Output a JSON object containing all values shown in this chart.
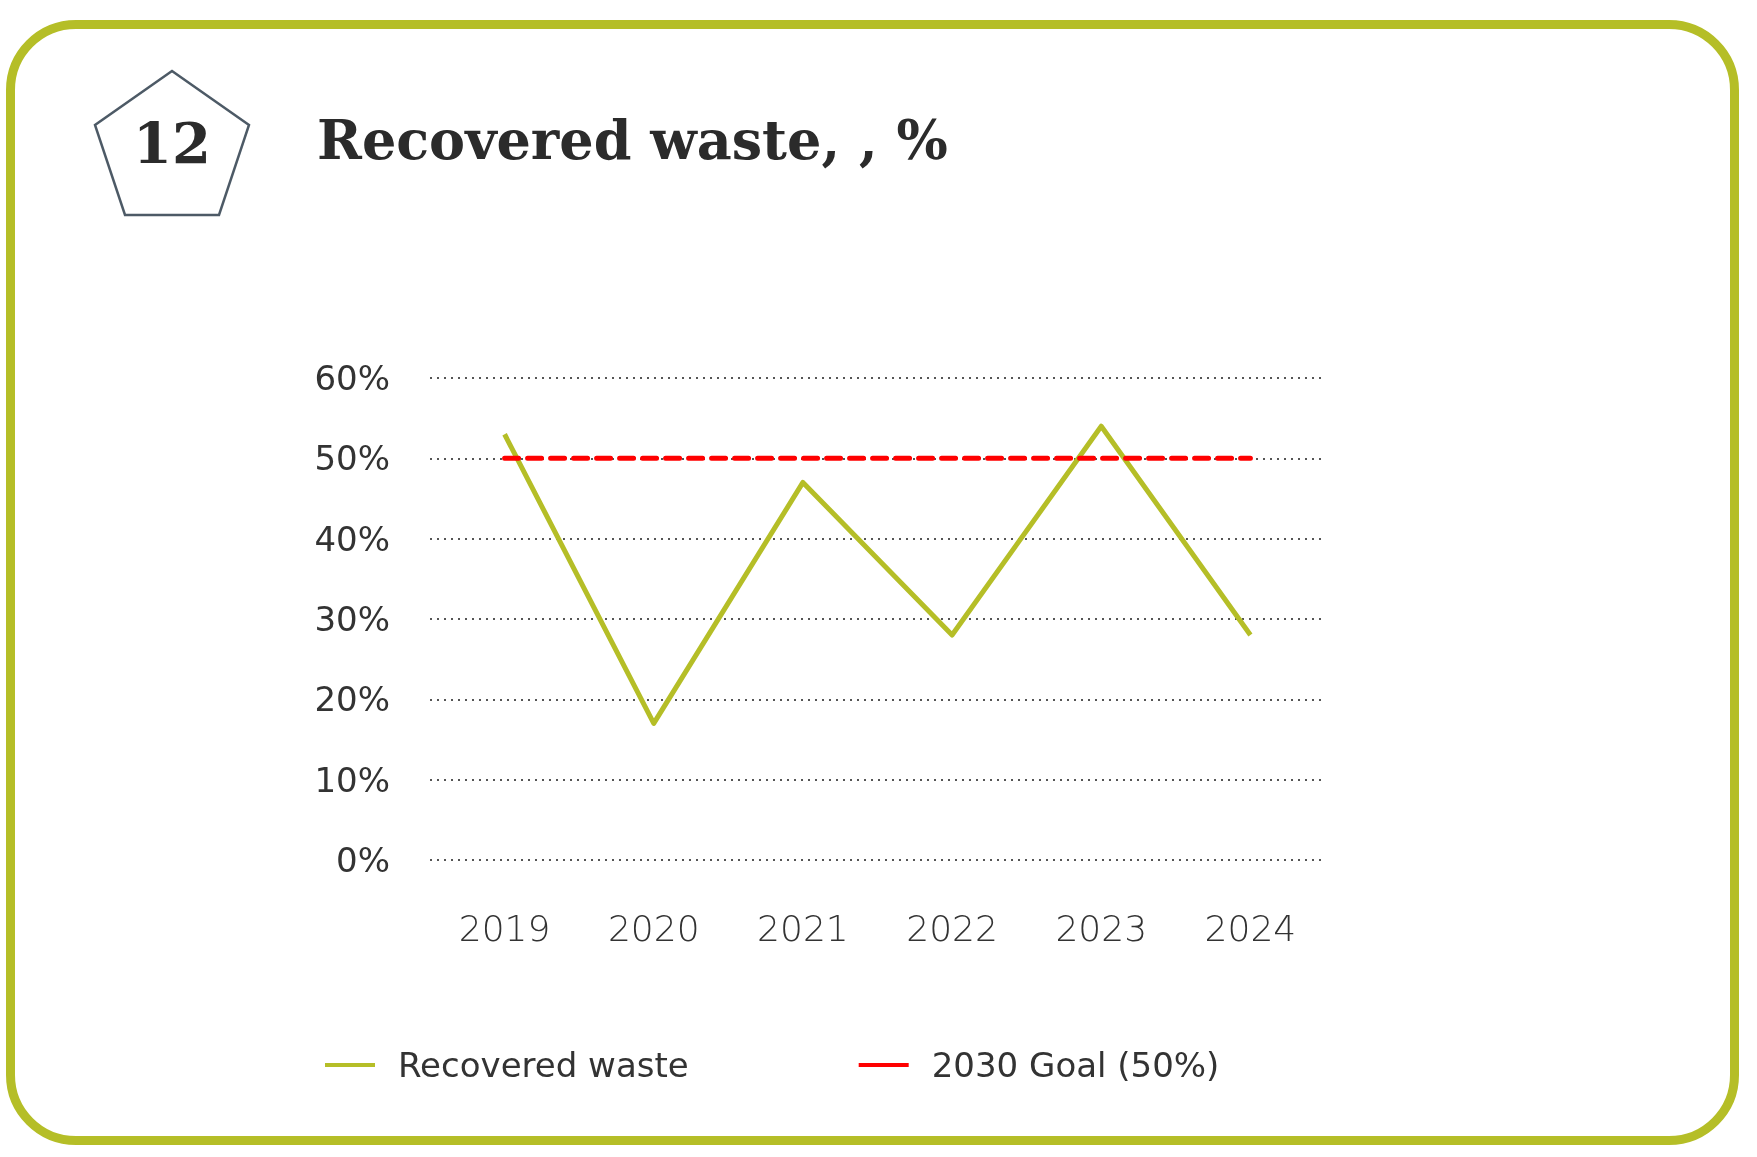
{
  "chart_data": {
    "type": "line",
    "title": "Recovered waste, , %",
    "annotations": [
      "12"
    ],
    "categories": [
      "2019",
      "2020",
      "2021",
      "2022",
      "2023",
      "2024"
    ],
    "series": [
      {
        "name": "Recovered waste",
        "color": "#b5be27",
        "values": [
          53,
          17,
          47,
          28,
          54,
          28
        ],
        "line_style": "solid"
      },
      {
        "name": "2030 Goal (50%)",
        "color": "#ff0000",
        "values": [
          50,
          50,
          50,
          50,
          50,
          50
        ],
        "line_style": "dashed"
      }
    ],
    "ylim": [
      0,
      60
    ],
    "yticks": [
      {
        "value": 0,
        "label": "0%"
      },
      {
        "value": 10,
        "label": "10%"
      },
      {
        "value": 20,
        "label": "20%"
      },
      {
        "value": 30,
        "label": "30%"
      },
      {
        "value": 40,
        "label": "40%"
      },
      {
        "value": 50,
        "label": "50%"
      },
      {
        "value": 60,
        "label": "60%"
      }
    ],
    "grid": "y",
    "legend": "bottom",
    "marker": "none"
  }
}
